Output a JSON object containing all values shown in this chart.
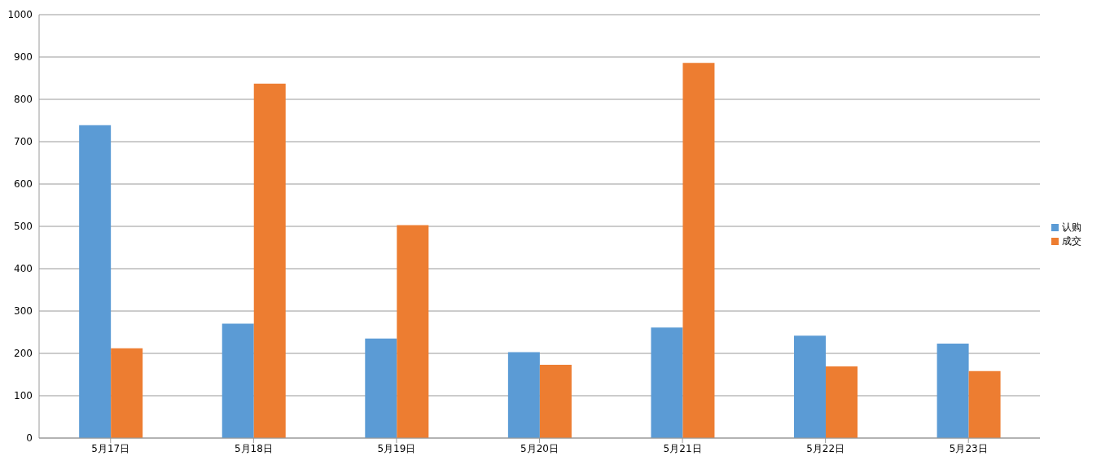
{
  "chart_data": {
    "type": "bar",
    "categories": [
      "5月17日",
      "5月18日",
      "5月19日",
      "5月20日",
      "5月21日",
      "5月22日",
      "5月23日"
    ],
    "series": [
      {
        "name": "认购",
        "color": "#5b9bd5",
        "values": [
          739,
          270,
          235,
          203,
          261,
          242,
          223
        ]
      },
      {
        "name": "成交",
        "color": "#ed7d31",
        "values": [
          212,
          837,
          503,
          173,
          886,
          169,
          158
        ]
      }
    ],
    "ylim": [
      0,
      1000
    ],
    "yticks": [
      0,
      100,
      200,
      300,
      400,
      500,
      600,
      700,
      800,
      900,
      1000
    ],
    "grid": "y",
    "legend": "right"
  }
}
